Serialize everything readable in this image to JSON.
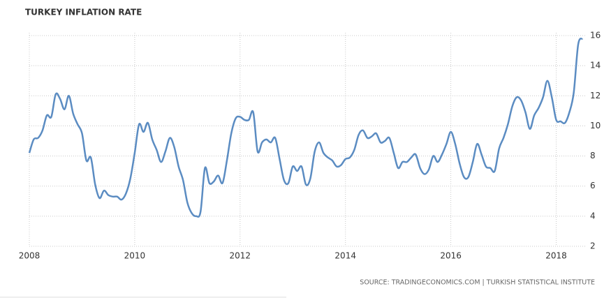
{
  "chart_data": {
    "type": "line",
    "title": "TURKEY INFLATION RATE",
    "source": "SOURCE: TRADINGECONOMICS.COM | TURKISH STATISTICAL INSTITUTE",
    "x": [
      2008,
      2008.083,
      2008.167,
      2008.25,
      2008.333,
      2008.417,
      2008.5,
      2008.583,
      2008.667,
      2008.75,
      2008.833,
      2008.917,
      2009,
      2009.083,
      2009.167,
      2009.25,
      2009.333,
      2009.417,
      2009.5,
      2009.583,
      2009.667,
      2009.75,
      2009.833,
      2009.917,
      2010,
      2010.083,
      2010.167,
      2010.25,
      2010.333,
      2010.417,
      2010.5,
      2010.583,
      2010.667,
      2010.75,
      2010.833,
      2010.917,
      2011,
      2011.083,
      2011.167,
      2011.25,
      2011.333,
      2011.417,
      2011.5,
      2011.583,
      2011.667,
      2011.75,
      2011.833,
      2011.917,
      2012,
      2012.083,
      2012.167,
      2012.25,
      2012.333,
      2012.417,
      2012.5,
      2012.583,
      2012.667,
      2012.75,
      2012.833,
      2012.917,
      2013,
      2013.083,
      2013.167,
      2013.25,
      2013.333,
      2013.417,
      2013.5,
      2013.583,
      2013.667,
      2013.75,
      2013.833,
      2013.917,
      2014,
      2014.083,
      2014.167,
      2014.25,
      2014.333,
      2014.417,
      2014.5,
      2014.583,
      2014.667,
      2014.75,
      2014.833,
      2014.917,
      2015,
      2015.083,
      2015.167,
      2015.25,
      2015.333,
      2015.417,
      2015.5,
      2015.583,
      2015.667,
      2015.75,
      2015.833,
      2015.917,
      2016,
      2016.083,
      2016.167,
      2016.25,
      2016.333,
      2016.417,
      2016.5,
      2016.583,
      2016.667,
      2016.75,
      2016.833,
      2016.917,
      2017,
      2017.083,
      2017.167,
      2017.25,
      2017.333,
      2017.417,
      2017.5,
      2017.583,
      2017.667,
      2017.75,
      2017.833,
      2017.917,
      2018,
      2018.083,
      2018.167,
      2018.25,
      2018.333,
      2018.417,
      2018.5
    ],
    "series": [
      {
        "color": "#5b8cc2",
        "values": [
          8.2,
          9.1,
          9.2,
          9.7,
          10.7,
          10.6,
          12.1,
          11.8,
          11.1,
          12.0,
          10.8,
          10.1,
          9.5,
          7.7,
          7.9,
          6.1,
          5.2,
          5.7,
          5.4,
          5.3,
          5.3,
          5.1,
          5.5,
          6.5,
          8.2,
          10.1,
          9.6,
          10.2,
          9.1,
          8.4,
          7.6,
          8.3,
          9.2,
          8.6,
          7.3,
          6.4,
          4.9,
          4.2,
          4.0,
          4.3,
          7.2,
          6.2,
          6.3,
          6.7,
          6.2,
          7.7,
          9.5,
          10.5,
          10.6,
          10.4,
          10.4,
          10.9,
          8.3,
          8.9,
          9.1,
          8.9,
          9.2,
          7.8,
          6.4,
          6.2,
          7.3,
          7.0,
          7.3,
          6.1,
          6.5,
          8.3,
          8.9,
          8.2,
          7.9,
          7.7,
          7.3,
          7.4,
          7.8,
          7.9,
          8.4,
          9.4,
          9.7,
          9.2,
          9.3,
          9.5,
          8.9,
          9.0,
          9.2,
          8.2,
          7.2,
          7.6,
          7.6,
          7.9,
          8.1,
          7.2,
          6.8,
          7.1,
          8.0,
          7.6,
          8.1,
          8.8,
          9.6,
          8.8,
          7.5,
          6.6,
          6.6,
          7.6,
          8.8,
          8.1,
          7.3,
          7.2,
          7.0,
          8.5,
          9.2,
          10.1,
          11.3,
          11.9,
          11.7,
          10.9,
          9.8,
          10.7,
          11.2,
          11.9,
          13.0,
          11.9,
          10.4,
          10.3,
          10.2,
          10.9,
          12.2,
          15.4,
          15.8
        ]
      }
    ],
    "xlim": [
      2008,
      2018.55
    ],
    "xticks": [
      2008,
      2010,
      2012,
      2014,
      2016,
      2018
    ],
    "ylim": [
      2,
      16
    ],
    "yticks": [
      2,
      4,
      6,
      8,
      10,
      12,
      14,
      16
    ],
    "grid": true
  }
}
